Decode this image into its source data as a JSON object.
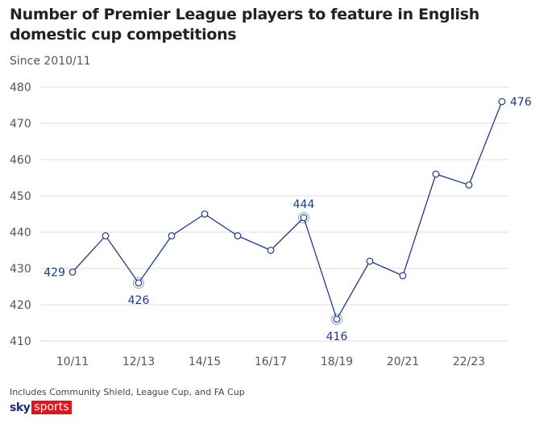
{
  "title": "Number of Premier League players to feature in English domestic cup competitions",
  "subtitle": "Since 2010/11",
  "footnote": "Includes Community Shield, League Cup, and FA Cup",
  "logo": {
    "sky": "sky",
    "sports": "sports"
  },
  "colors": {
    "line": "#1a3a8a",
    "grid": "#dddddd",
    "tick": "#555555"
  },
  "chart_data": {
    "type": "line",
    "title": "Number of Premier League players to feature in English domestic cup competitions",
    "x": [
      "10/11",
      "11/12",
      "12/13",
      "13/14",
      "14/15",
      "15/16",
      "16/17",
      "17/18",
      "18/19",
      "19/20",
      "20/21",
      "21/22",
      "22/23",
      "23/24"
    ],
    "values": [
      429,
      439,
      426,
      439,
      445,
      439,
      435,
      444,
      416,
      432,
      428,
      456,
      453,
      476
    ],
    "xticks": [
      "10/11",
      "12/13",
      "14/15",
      "16/17",
      "18/19",
      "20/21",
      "22/23"
    ],
    "yticks": [
      410,
      420,
      430,
      440,
      450,
      460,
      470,
      480
    ],
    "ylim": [
      410,
      480
    ],
    "grid": true,
    "annotations": [
      {
        "index": 0,
        "label": "429",
        "pos": "left"
      },
      {
        "index": 2,
        "label": "426",
        "pos": "below",
        "ring": true
      },
      {
        "index": 7,
        "label": "444",
        "pos": "above",
        "ring": true
      },
      {
        "index": 8,
        "label": "416",
        "pos": "below",
        "ring": true
      },
      {
        "index": 13,
        "label": "476",
        "pos": "right"
      }
    ]
  }
}
